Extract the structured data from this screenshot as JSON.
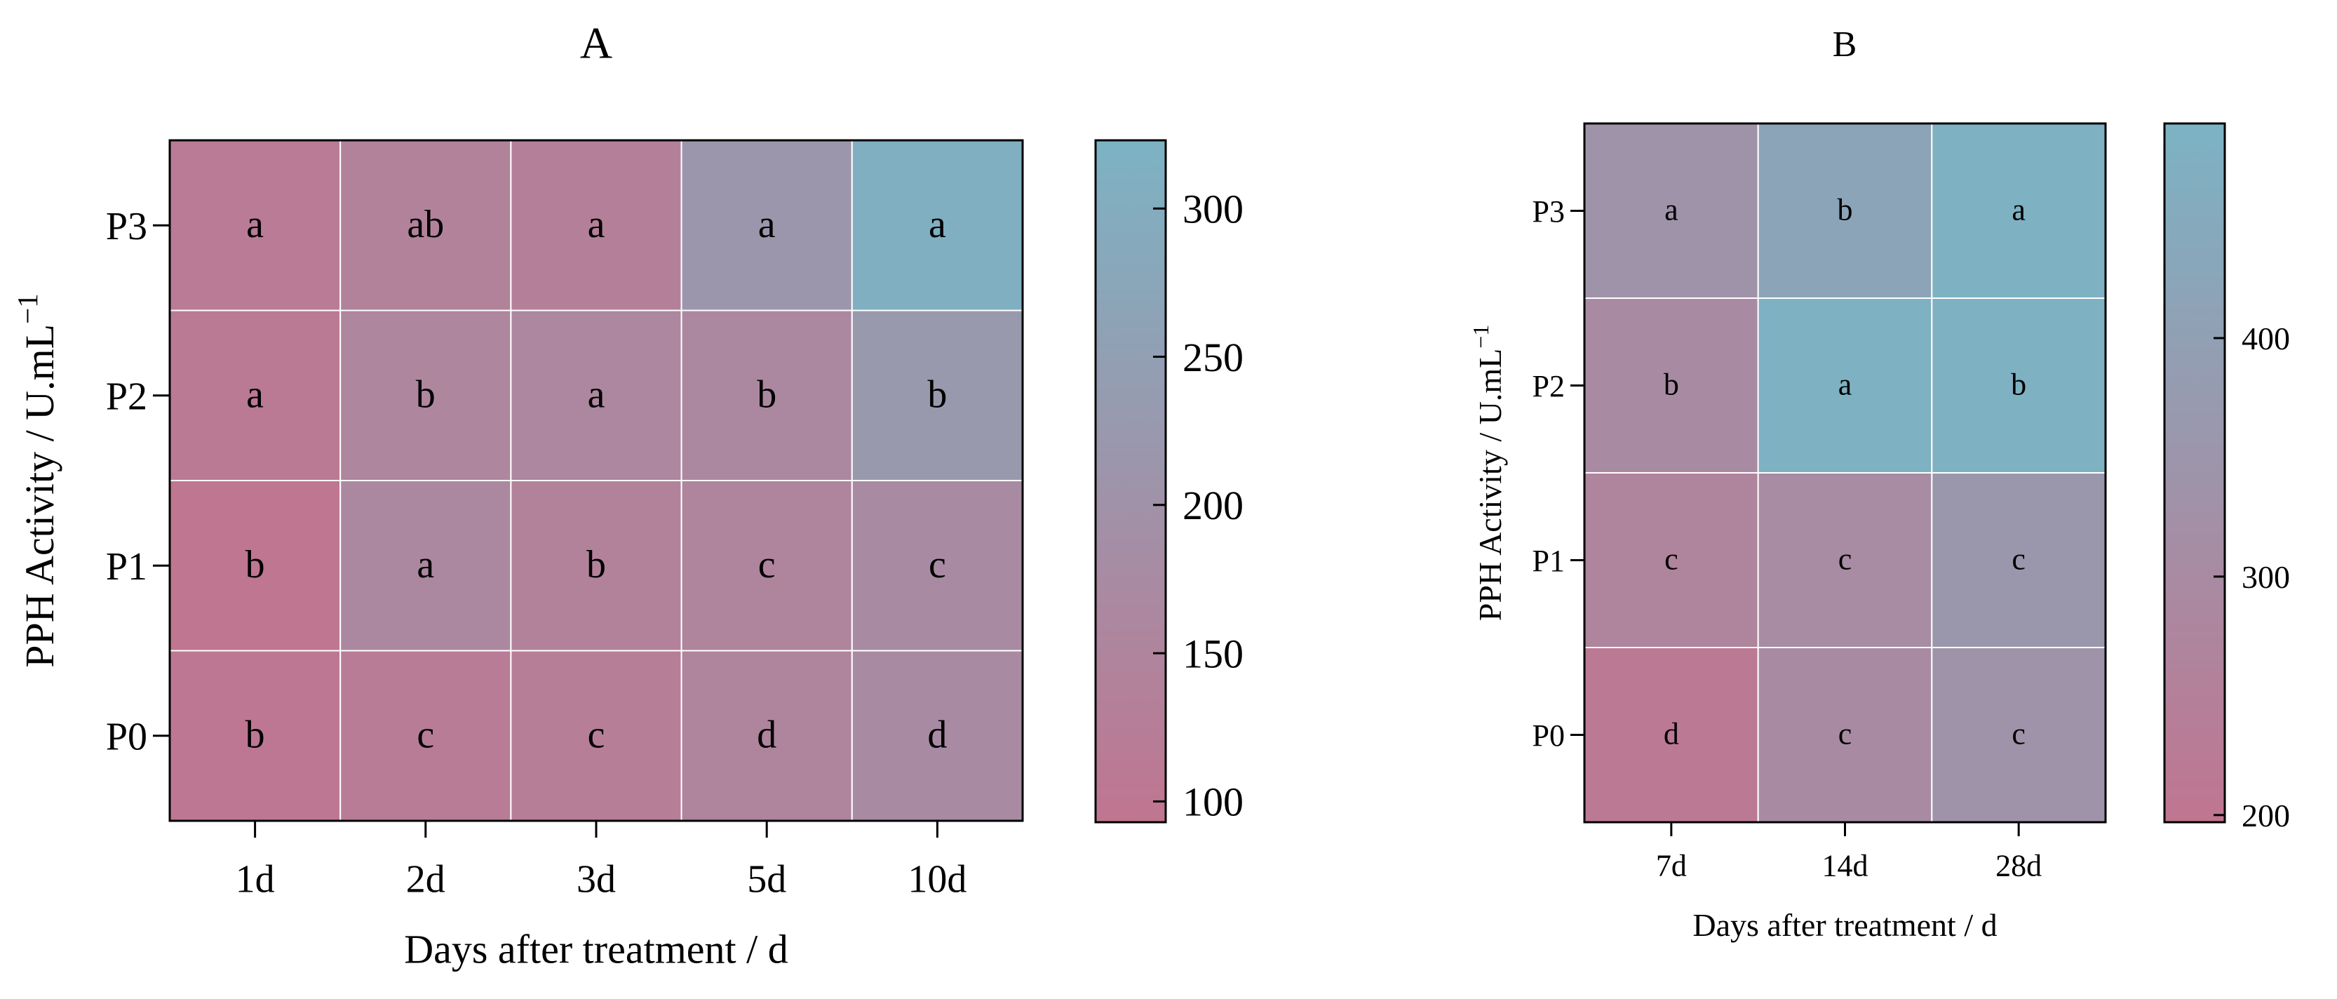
{
  "colors": {
    "low": "#c07590",
    "high": "#7cb3c4",
    "cell_border": "#ffffff",
    "axis": "#000000"
  },
  "chart_data": [
    {
      "type": "heatmap",
      "title": "A",
      "xlabel": "Days after treatment / d",
      "ylabel": "PPH Activity / U.mL",
      "ylabel_sup": "−1",
      "categories": [
        "1d",
        "2d",
        "3d",
        "5d",
        "10d"
      ],
      "rows": [
        "P3",
        "P2",
        "P1",
        "P0"
      ],
      "values": [
        [
          115,
          140,
          135,
          215,
          310
        ],
        [
          112,
          155,
          160,
          165,
          225
        ],
        [
          95,
          165,
          140,
          150,
          175
        ],
        [
          100,
          120,
          125,
          150,
          175
        ]
      ],
      "letters": [
        [
          "a",
          "ab",
          "a",
          "a",
          "a"
        ],
        [
          "a",
          "b",
          "a",
          "b",
          "b"
        ],
        [
          "b",
          "a",
          "b",
          "c",
          "c"
        ],
        [
          "b",
          "c",
          "c",
          "d",
          "d"
        ]
      ],
      "colorbar": {
        "min": 93,
        "max": 323,
        "ticks": [
          100,
          150,
          200,
          250,
          300
        ]
      }
    },
    {
      "type": "heatmap",
      "title": "B",
      "xlabel": "Days after treatment / d",
      "ylabel": "PPH Activity / U.mL",
      "ylabel_sup": "−1",
      "categories": [
        "7d",
        "14d",
        "28d"
      ],
      "rows": [
        "P3",
        "P2",
        "P1",
        "P0"
      ],
      "values": [
        [
          340,
          420,
          480
        ],
        [
          300,
          480,
          480
        ],
        [
          270,
          305,
          360
        ],
        [
          215,
          300,
          340
        ]
      ],
      "letters": [
        [
          "a",
          "b",
          "a"
        ],
        [
          "b",
          "a",
          "b"
        ],
        [
          "c",
          "c",
          "c"
        ],
        [
          "d",
          "c",
          "c"
        ]
      ],
      "colorbar": {
        "min": 197,
        "max": 490,
        "ticks": [
          200,
          300,
          400
        ]
      }
    }
  ]
}
